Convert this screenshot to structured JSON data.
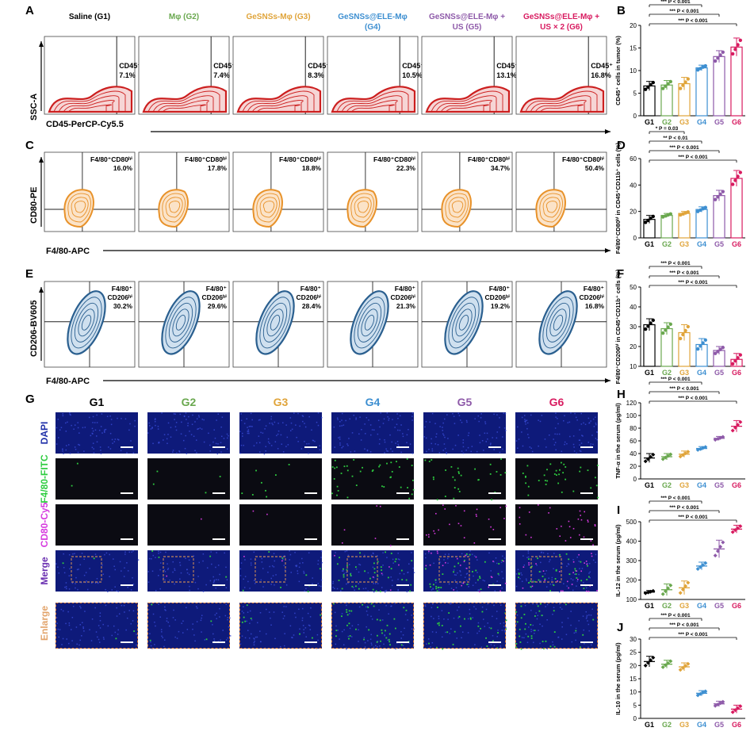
{
  "colors": {
    "G1": "#000000",
    "G2": "#6aa84f",
    "G3": "#e0a43a",
    "G4": "#3d8fd1",
    "G5": "#8e5aa9",
    "G6": "#d81b60",
    "red_contour": "#cc1f1f",
    "orange_contour": "#e8922a",
    "blue_contour": "#2a5f8f",
    "dapi": "#1f2fa8",
    "fitc": "#2ecc40",
    "cy5": "#d63adf"
  },
  "panelA": {
    "label": "A",
    "headers": [
      "Saline (G1)",
      "Mφ (G2)",
      "GeSNSs-Mφ (G3)",
      "GeSNSs@ELE-Mφ",
      "GeSNSs@ELE-Mφ +",
      "GeSNSs@ELE-Mφ +"
    ],
    "headers2": [
      "",
      "",
      "",
      "(G4)",
      "US (G5)",
      "US × 2 (G6)"
    ],
    "gate_label": "CD45⁺",
    "values": [
      "7.1%",
      "7.4%",
      "8.3%",
      "10.5%",
      "13.1%",
      "16.8%"
    ],
    "ylabel": "SSC-A",
    "xlabel": "CD45-PerCP-Cy5.5"
  },
  "panelC": {
    "label": "C",
    "gate_label": "F4/80⁺CD80ʰⁱ",
    "values": [
      "16.0%",
      "17.8%",
      "18.8%",
      "22.3%",
      "34.7%",
      "50.4%"
    ],
    "ylabel": "CD80-PE",
    "xlabel": "F4/80-APC"
  },
  "panelE": {
    "label": "E",
    "gate_line1": "F4/80⁺",
    "gate_line2": "CD206ʰⁱ",
    "values": [
      "30.2%",
      "29.6%",
      "28.4%",
      "21.3%",
      "19.2%",
      "16.8%"
    ],
    "ylabel": "CD206-BV605",
    "xlabel": "F4/80-APC"
  },
  "panelG": {
    "label": "G",
    "groups": [
      "G1",
      "G2",
      "G3",
      "G4",
      "G5",
      "G6"
    ],
    "rows": [
      "DAPI",
      "F4/80-FITC",
      "CD80-Cy5",
      "Merge",
      "Enlarge"
    ]
  },
  "chart_data": [
    {
      "panel": "B",
      "type": "bar",
      "categories": [
        "G1",
        "G2",
        "G3",
        "G4",
        "G5",
        "G6"
      ],
      "values": [
        6.6,
        6.8,
        7.1,
        10.6,
        13.1,
        15.2
      ],
      "errors": [
        1.0,
        1.0,
        1.4,
        0.6,
        1.3,
        2.0
      ],
      "ylabel": "CD45⁺ cells in tumor (%)",
      "ylim": [
        0,
        20
      ],
      "yticks": [
        0,
        5,
        10,
        15,
        20
      ],
      "annotations": [
        "*** P < 0.001",
        "*** P < 0.001",
        "*** P < 0.001"
      ]
    },
    {
      "panel": "D",
      "type": "bar",
      "categories": [
        "G1",
        "G2",
        "G3",
        "G4",
        "G5",
        "G6"
      ],
      "values": [
        14,
        17,
        18.5,
        21.5,
        32,
        45
      ],
      "errors": [
        3,
        1.5,
        1.5,
        2,
        4,
        6
      ],
      "ylabel": "F4/80⁺CD80ʰⁱ in CD45⁺CD11b⁺ cells (%)",
      "ylim": [
        0,
        60
      ],
      "yticks": [
        0,
        20,
        40,
        60
      ],
      "annotations": [
        "* P = 0.03",
        "** P < 0.01",
        "*** P < 0.001",
        "*** P < 0.001"
      ]
    },
    {
      "panel": "F",
      "type": "bar",
      "categories": [
        "G1",
        "G2",
        "G3",
        "G4",
        "G5",
        "G6"
      ],
      "values": [
        31,
        29,
        27,
        21,
        18,
        13.5
      ],
      "errors": [
        3,
        3,
        4,
        3,
        2,
        3
      ],
      "ylabel": "F4/80⁺CD206ʰⁱ in CD45⁺CD11b⁺ cells (%)",
      "ylim": [
        10,
        50
      ],
      "yticks": [
        10,
        20,
        30,
        40,
        50
      ],
      "annotations": [
        "*** P < 0.001",
        "*** P < 0.001",
        "*** P < 0.001"
      ]
    },
    {
      "panel": "H",
      "type": "scatter",
      "categories": [
        "G1",
        "G2",
        "G3",
        "G4",
        "G5",
        "G6"
      ],
      "values": [
        33,
        35,
        39,
        48,
        64,
        83
      ],
      "errors": [
        7,
        5,
        5,
        3,
        3,
        9
      ],
      "ylabel": "TNF-α in the serum (pg/ml)",
      "ylim": [
        0,
        120
      ],
      "yticks": [
        0,
        20,
        40,
        60,
        80,
        100,
        120
      ],
      "annotations": [
        "*** P < 0.001",
        "*** P < 0.001",
        "*** P < 0.001"
      ]
    },
    {
      "panel": "I",
      "type": "scatter",
      "categories": [
        "G1",
        "G2",
        "G3",
        "G4",
        "G5",
        "G6"
      ],
      "values": [
        138,
        150,
        160,
        272,
        360,
        462
      ],
      "errors": [
        8,
        30,
        35,
        20,
        45,
        20
      ],
      "ylabel": "IL-12 in the serum (pg/ml)",
      "ylim": [
        100,
        500
      ],
      "yticks": [
        100,
        200,
        300,
        400,
        500
      ],
      "annotations": [
        "*** P < 0.001",
        "*** P < 0.001",
        "*** P < 0.001"
      ]
    },
    {
      "panel": "J",
      "type": "scatter",
      "categories": [
        "G1",
        "G2",
        "G3",
        "G4",
        "G5",
        "G6"
      ],
      "values": [
        21.5,
        20.5,
        19.5,
        9.5,
        5.5,
        3.5
      ],
      "errors": [
        2,
        1.5,
        1.5,
        1,
        1,
        1.5
      ],
      "ylabel": "IL-10 in the serum (pg/ml)",
      "ylim": [
        0,
        30
      ],
      "yticks": [
        0,
        5,
        10,
        15,
        20,
        25,
        30
      ],
      "annotations": [
        "*** P < 0.001",
        "*** P < 0.001",
        "*** P < 0.001"
      ]
    }
  ]
}
